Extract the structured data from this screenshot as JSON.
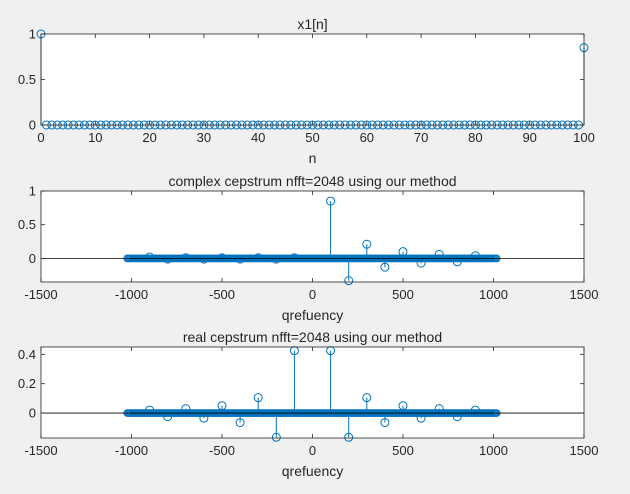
{
  "chart_data": [
    {
      "type": "stem",
      "title": "x1[n]",
      "xlabel": "n",
      "ylabel": "",
      "xlim": [
        0,
        100
      ],
      "ylim": [
        0,
        1
      ],
      "xticks": [
        0,
        10,
        20,
        30,
        40,
        50,
        60,
        70,
        80,
        90,
        100
      ],
      "yticks": [
        0,
        0.5,
        1
      ],
      "tick_labels_x": [
        "0",
        "10",
        "20",
        "30",
        "40",
        "50",
        "60",
        "70",
        "80",
        "90",
        "100"
      ],
      "tick_labels_y": [
        "0",
        "0.5",
        "1"
      ],
      "grid": false,
      "color": "#0072BD",
      "series": [
        {
          "x": [
            0,
            1,
            2,
            3,
            4,
            5,
            6,
            7,
            8,
            9,
            10,
            11,
            12,
            13,
            14,
            15,
            16,
            17,
            18,
            19,
            20,
            21,
            22,
            23,
            24,
            25,
            26,
            27,
            28,
            29,
            30,
            31,
            32,
            33,
            34,
            35,
            36,
            37,
            38,
            39,
            40,
            41,
            42,
            43,
            44,
            45,
            46,
            47,
            48,
            49,
            50,
            51,
            52,
            53,
            54,
            55,
            56,
            57,
            58,
            59,
            60,
            61,
            62,
            63,
            64,
            65,
            66,
            67,
            68,
            69,
            70,
            71,
            72,
            73,
            74,
            75,
            76,
            77,
            78,
            79,
            80,
            81,
            82,
            83,
            84,
            85,
            86,
            87,
            88,
            89,
            90,
            91,
            92,
            93,
            94,
            95,
            96,
            97,
            98,
            99,
            100
          ],
          "y": [
            1,
            0,
            0,
            0,
            0,
            0,
            0,
            0,
            0,
            0,
            0,
            0,
            0,
            0,
            0,
            0,
            0,
            0,
            0,
            0,
            0,
            0,
            0,
            0,
            0,
            0,
            0,
            0,
            0,
            0,
            0,
            0,
            0,
            0,
            0,
            0,
            0,
            0,
            0,
            0,
            0,
            0,
            0,
            0,
            0,
            0,
            0,
            0,
            0,
            0,
            0,
            0,
            0,
            0,
            0,
            0,
            0,
            0,
            0,
            0,
            0,
            0,
            0,
            0,
            0,
            0,
            0,
            0,
            0,
            0,
            0,
            0,
            0,
            0,
            0,
            0,
            0,
            0,
            0,
            0,
            0,
            0,
            0,
            0,
            0,
            0,
            0,
            0,
            0,
            0,
            0,
            0,
            0,
            0,
            0,
            0,
            0,
            0,
            0,
            0,
            0.85
          ]
        }
      ]
    },
    {
      "type": "stem",
      "title": "complex cepstrum nfft=2048 using our method",
      "xlabel": "qrefuency",
      "ylabel": "",
      "xlim": [
        -1500,
        1500
      ],
      "ylim": [
        -0.35,
        1
      ],
      "xticks": [
        -1500,
        -1000,
        -500,
        0,
        500,
        1000,
        1500
      ],
      "yticks": [
        0,
        0.5,
        1
      ],
      "tick_labels_x": [
        "-1500",
        "-1000",
        "-500",
        "0",
        "500",
        "1000",
        "1500"
      ],
      "tick_labels_y": [
        "0",
        "0.5",
        "1"
      ],
      "grid": false,
      "color": "#0072BD",
      "dense_range": [
        -1024,
        1024
      ],
      "series": [
        {
          "x": [
            100,
            200,
            300,
            400,
            500,
            600,
            700,
            800,
            900,
            -900,
            -800,
            -700,
            -600,
            -500,
            -400,
            -300,
            -200,
            -100
          ],
          "y": [
            0.85,
            -0.33,
            0.21,
            -0.13,
            0.1,
            -0.07,
            0.06,
            -0.05,
            0.04,
            0.02,
            -0.01,
            0.01,
            -0.01,
            0.01,
            -0.01,
            0.01,
            -0.01,
            0.01
          ]
        }
      ]
    },
    {
      "type": "stem",
      "title": "real cepstrum nfft=2048 using our method",
      "xlabel": "qrefuency",
      "ylabel": "",
      "xlim": [
        -1500,
        1500
      ],
      "ylim": [
        -0.17,
        0.45
      ],
      "xticks": [
        -1500,
        -1000,
        -500,
        0,
        500,
        1000,
        1500
      ],
      "yticks": [
        0,
        0.2,
        0.4
      ],
      "tick_labels_x": [
        "-1500",
        "-1000",
        "-500",
        "0",
        "500",
        "1000",
        "1500"
      ],
      "tick_labels_y": [
        "0",
        "0.2",
        "0.4"
      ],
      "grid": false,
      "color": "#0072BD",
      "dense_range": [
        -1024,
        1024
      ],
      "series": [
        {
          "x": [
            100,
            -100,
            200,
            -200,
            300,
            -300,
            400,
            -400,
            500,
            -500,
            600,
            -600,
            700,
            -700,
            800,
            -800,
            900,
            -900
          ],
          "y": [
            0.425,
            0.425,
            -0.165,
            -0.165,
            0.105,
            0.105,
            -0.065,
            -0.065,
            0.05,
            0.05,
            -0.035,
            -0.035,
            0.03,
            0.03,
            -0.025,
            -0.025,
            0.02,
            0.02
          ]
        }
      ]
    }
  ]
}
